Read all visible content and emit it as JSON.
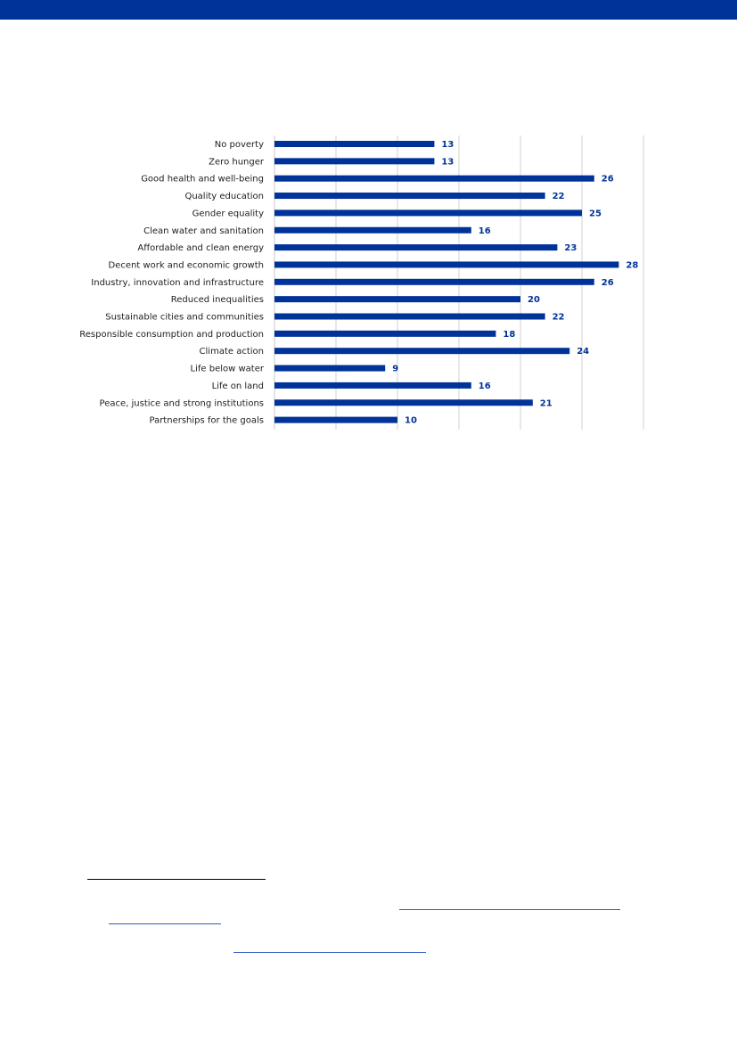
{
  "page": {
    "band_color": "#003399",
    "link_color": "#2a5cc0"
  },
  "chart_data": {
    "type": "bar",
    "orientation": "horizontal",
    "categories": [
      "No poverty",
      "Zero hunger",
      "Good health and well-being",
      "Quality education",
      "Gender equality",
      "Clean water and sanitation",
      "Affordable and clean energy",
      "Decent work and economic growth",
      "Industry, innovation and infrastructure",
      "Reduced inequalities",
      "Sustainable cities and communities",
      "Responsible consumption and production",
      "Climate action",
      "Life below water",
      "Life on land",
      "Peace, justice and strong institutions",
      "Partnerships for the goals"
    ],
    "values": [
      13,
      13,
      26,
      22,
      25,
      16,
      23,
      28,
      26,
      20,
      22,
      18,
      24,
      9,
      16,
      21,
      10
    ],
    "xlim": [
      0,
      30
    ],
    "x_gridlines_at": [
      0,
      5,
      10,
      15,
      20,
      25,
      30
    ],
    "x_tick_labels_shown": false,
    "data_labels": true,
    "grid": true,
    "legend": "none",
    "bar_color": "#003399",
    "label_color": "#003399",
    "gridline_color": "#d0d0d0",
    "title": "",
    "xlabel": "",
    "ylabel": ""
  }
}
